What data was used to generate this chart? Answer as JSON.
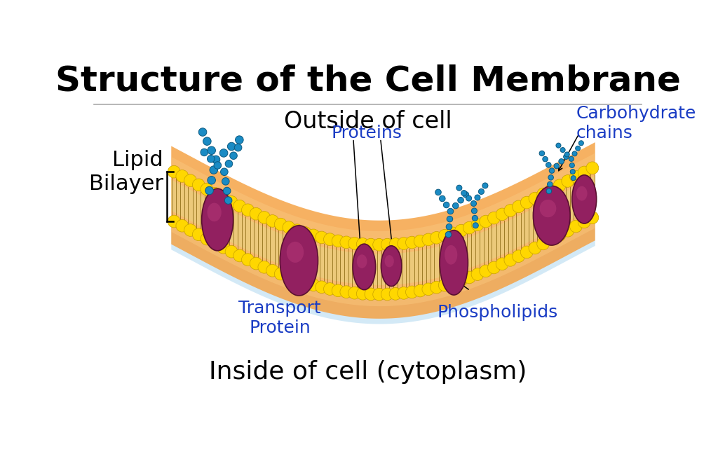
{
  "title": "Structure of the Cell Membrane",
  "title_fontsize": 36,
  "title_fontweight": "bold",
  "outside_label": "Outside of cell",
  "outside_fontsize": 24,
  "inside_label": "Inside of cell (cytoplasm)",
  "inside_fontsize": 26,
  "lipid_bilayer_label": "Lipid\nBilayer",
  "lipid_bilayer_fontsize": 22,
  "proteins_label": "Proteins",
  "proteins_fontsize": 18,
  "proteins_color": "#1a3cc4",
  "transport_protein_label": "Transport\nProtein",
  "transport_protein_fontsize": 18,
  "transport_protein_color": "#1a3cc4",
  "phospholipids_label": "Phospholipids",
  "phospholipids_fontsize": 18,
  "phospholipids_color": "#1a3cc4",
  "carbohydrate_label": "Carbohydrate\nchains",
  "carbohydrate_fontsize": 18,
  "carbohydrate_color": "#1a3cc4",
  "bg_color": "#ffffff",
  "membrane_orange": "#f5a040",
  "membrane_orange_light": "#fac880",
  "shadow_blue": "#b0d8f0",
  "phospholipid_head_color": "#ffd700",
  "phospholipid_head_edge": "#c8a000",
  "protein_color": "#922060",
  "protein_highlight": "#c04080",
  "carbohydrate_bead_color": "#1a8bc4",
  "carbohydrate_bead_edge": "#0d5a80",
  "tail_color": "#7a5800",
  "divider_color": "#aaaaaa",
  "bracket_color": "#000000",
  "tail_zone_color": "#e8d080"
}
